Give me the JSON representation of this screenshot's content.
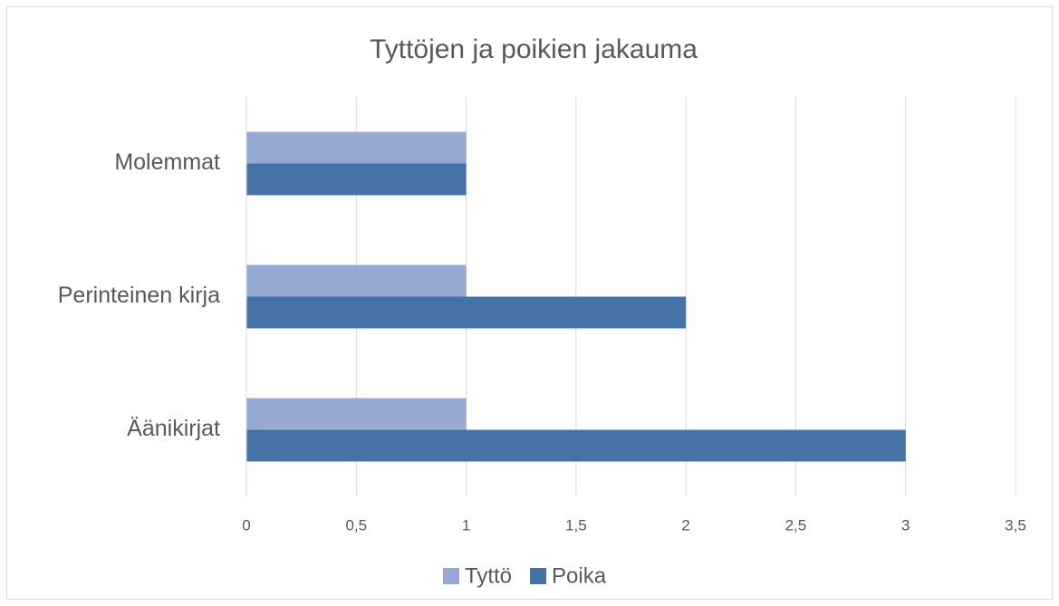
{
  "chart_data": {
    "type": "bar",
    "orientation": "horizontal",
    "title": "Tyttöjen ja poikien jakauma",
    "categories": [
      "Äänikirjat",
      "Perinteinen kirja",
      "Molemmat"
    ],
    "series": [
      {
        "name": "Tyttö",
        "color": "#98aad3",
        "values": [
          1,
          1,
          1
        ]
      },
      {
        "name": "Poika",
        "color": "#4572a7",
        "values": [
          3,
          2,
          1
        ]
      }
    ],
    "xlim": [
      0,
      3.5
    ],
    "xticks": [
      0,
      {
        "value": 0.5,
        "label": "0,5"
      },
      1,
      {
        "value": 1.5,
        "label": "1,5"
      },
      2,
      {
        "value": 2.5,
        "label": "2,5"
      },
      3,
      {
        "value": 3.5,
        "label": "3,5"
      }
    ],
    "grid": true,
    "legend": "bottom"
  }
}
